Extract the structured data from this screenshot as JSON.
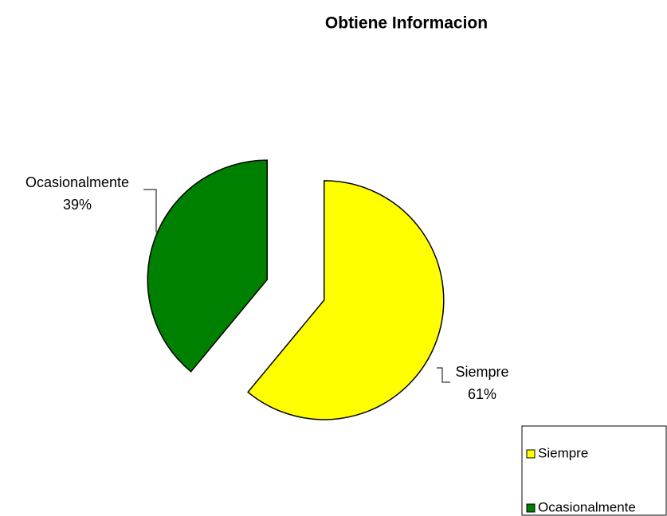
{
  "chart_data": {
    "type": "pie",
    "title": "Obtiene Informacion",
    "categories": [
      "Siempre",
      "Ocasionalmente"
    ],
    "values": [
      61,
      39
    ],
    "value_labels": [
      "61%",
      "39%"
    ],
    "colors": [
      "#ffff00",
      "#008000"
    ],
    "legend": "lower right"
  }
}
